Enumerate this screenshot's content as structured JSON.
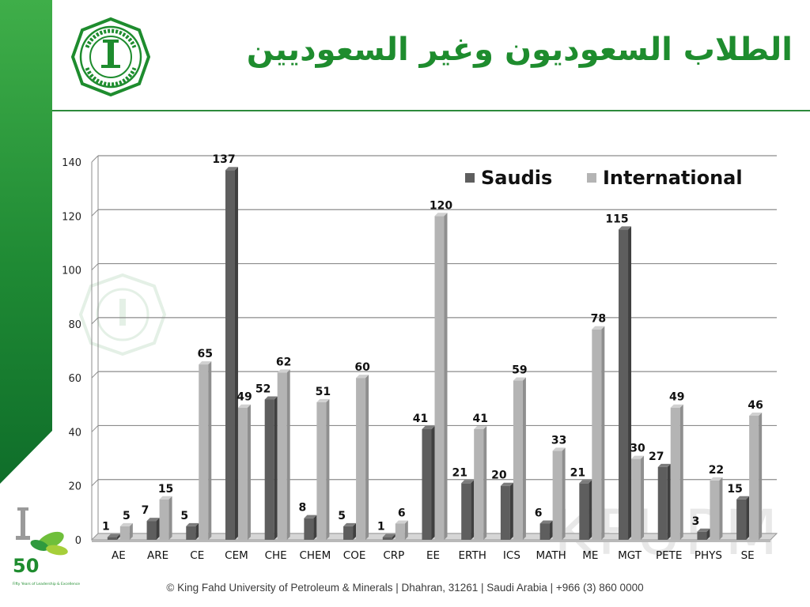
{
  "header": {
    "title": "الطلاب السعوديون وغير السعوديين",
    "logo_icon": "kfupm-seal-icon"
  },
  "footer": {
    "text": "© King Fahd University of Petroleum & Minerals | Dhahran, 31261 | Saudi Arabia | +966 (3) 860 0000"
  },
  "badge_50": {
    "number": "50",
    "tagline": "Fifty Years of Leadership & Excellence"
  },
  "watermark": {
    "text": "KFUPM"
  },
  "colors": {
    "brand_green": "#1e8c2e",
    "saudis_bar": "#5e5e5e",
    "international_bar": "#b4b4b4"
  },
  "chart_data": {
    "type": "bar",
    "categories": [
      "AE",
      "ARE",
      "CE",
      "CEM",
      "CHE",
      "CHEM",
      "COE",
      "CRP",
      "EE",
      "ERTH",
      "ICS",
      "MATH",
      "ME",
      "MGT",
      "PETE",
      "PHYS",
      "SE"
    ],
    "series": [
      {
        "name": "Saudis",
        "values": [
          1,
          7,
          5,
          137,
          52,
          8,
          5,
          1,
          41,
          21,
          20,
          6,
          21,
          115,
          27,
          3,
          15
        ]
      },
      {
        "name": "International",
        "values": [
          5,
          15,
          65,
          49,
          62,
          51,
          60,
          6,
          120,
          41,
          59,
          33,
          78,
          30,
          49,
          22,
          46
        ]
      }
    ],
    "ylim": [
      0,
      140
    ],
    "yticks": [
      0,
      20,
      40,
      60,
      80,
      100,
      120,
      140
    ],
    "legend_position": "top-right",
    "grid": true,
    "three_d": true
  }
}
